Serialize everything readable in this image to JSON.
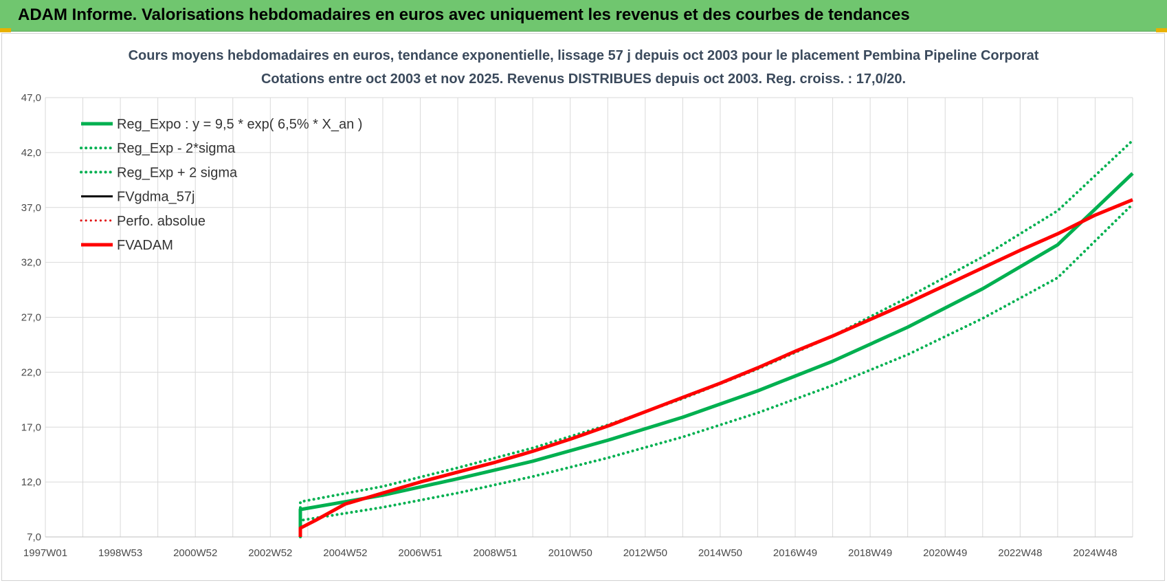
{
  "banner": {
    "title": "ADAM Informe. Valorisations hebdomadaires en euros avec uniquement les revenus et des courbes de tendances",
    "color": "#70c66f"
  },
  "chart_data": {
    "type": "line",
    "title": "Cours moyens hebdomadaires en euros, tendance exponentielle, lissage 57 j depuis oct 2003 pour le placement Pembina Pipeline Corporat",
    "subtitle": "Cotations entre oct 2003 et nov 2025. Revenus DISTRIBUES depuis oct 2003.  Reg. croiss. : 17,0/20.",
    "xlabel": "",
    "ylabel": "",
    "ylim": [
      7.0,
      47.0
    ],
    "xlim": [
      1997.0,
      2026.0
    ],
    "yticks": [
      "7,0",
      "12,0",
      "17,0",
      "22,0",
      "27,0",
      "32,0",
      "37,0",
      "42,0",
      "47,0"
    ],
    "xticks": [
      {
        "x": 1997.0,
        "label": "1997W01"
      },
      {
        "x": 1999.0,
        "label": "1998W53"
      },
      {
        "x": 2001.0,
        "label": "2000W52"
      },
      {
        "x": 2003.0,
        "label": "2002W52"
      },
      {
        "x": 2005.0,
        "label": "2004W52"
      },
      {
        "x": 2007.0,
        "label": "2006W51"
      },
      {
        "x": 2009.0,
        "label": "2008W51"
      },
      {
        "x": 2011.0,
        "label": "2010W50"
      },
      {
        "x": 2013.0,
        "label": "2012W50"
      },
      {
        "x": 2015.0,
        "label": "2014W50"
      },
      {
        "x": 2017.0,
        "label": "2016W49"
      },
      {
        "x": 2019.0,
        "label": "2018W49"
      },
      {
        "x": 2021.0,
        "label": "2020W49"
      },
      {
        "x": 2023.0,
        "label": "2022W48"
      },
      {
        "x": 2025.0,
        "label": "2024W48"
      }
    ],
    "grid": true,
    "legend_position": "top-left",
    "series": [
      {
        "name": "Reg_Expo : y = 9,5 * exp( 6,5% *  X_an )",
        "color": "#00b050",
        "style": "solid",
        "width": 5,
        "x": [
          2003.8,
          2003.8,
          2006.0,
          2008.0,
          2010.0,
          2012.0,
          2014.0,
          2016.0,
          2018.0,
          2020.0,
          2022.0,
          2024.0,
          2026.0
        ],
        "y": [
          7.0,
          9.5,
          10.8,
          12.3,
          13.9,
          15.8,
          17.9,
          20.3,
          23.0,
          26.1,
          29.6,
          33.6,
          40.1
        ]
      },
      {
        "name": "Reg_Exp - 2*sigma",
        "color": "#00b050",
        "style": "dotted",
        "width": 4,
        "x": [
          2003.8,
          2003.8,
          2006.0,
          2008.0,
          2010.0,
          2012.0,
          2014.0,
          2016.0,
          2018.0,
          2020.0,
          2022.0,
          2024.0,
          2026.0
        ],
        "y": [
          7.0,
          8.5,
          9.7,
          11.0,
          12.5,
          14.2,
          16.1,
          18.3,
          20.8,
          23.6,
          26.9,
          30.6,
          37.3
        ]
      },
      {
        "name": "Reg_Exp + 2 sigma",
        "color": "#00b050",
        "style": "dotted",
        "width": 4,
        "x": [
          2003.8,
          2003.8,
          2006.0,
          2008.0,
          2010.0,
          2012.0,
          2014.0,
          2016.0,
          2018.0,
          2020.0,
          2022.0,
          2024.0,
          2026.0
        ],
        "y": [
          7.0,
          10.2,
          11.6,
          13.3,
          15.1,
          17.2,
          19.6,
          22.3,
          25.3,
          28.8,
          32.5,
          36.7,
          43.1
        ]
      },
      {
        "name": "FVgdma_57j",
        "color": "#000000",
        "style": "solid",
        "width": 3,
        "x": [],
        "y": []
      },
      {
        "name": "Perfo. absolue",
        "color": "#e00000",
        "style": "dotted",
        "width": 3,
        "x": [],
        "y": []
      },
      {
        "name": "FVADAM",
        "color": "#ff0000",
        "style": "solid",
        "width": 5,
        "x": [
          2003.8,
          2003.8,
          2004.2,
          2005.0,
          2006.0,
          2007.0,
          2008.0,
          2009.0,
          2010.0,
          2011.0,
          2012.0,
          2013.0,
          2014.0,
          2015.0,
          2016.0,
          2017.0,
          2018.0,
          2019.0,
          2020.0,
          2021.0,
          2022.0,
          2023.0,
          2024.0,
          2025.0,
          2026.0
        ],
        "y": [
          7.0,
          7.8,
          8.5,
          10.0,
          11.0,
          12.0,
          12.9,
          13.8,
          14.8,
          15.9,
          17.1,
          18.4,
          19.7,
          21.0,
          22.4,
          23.9,
          25.3,
          26.8,
          28.3,
          29.9,
          31.5,
          33.1,
          34.6,
          36.3,
          37.7
        ]
      }
    ]
  }
}
